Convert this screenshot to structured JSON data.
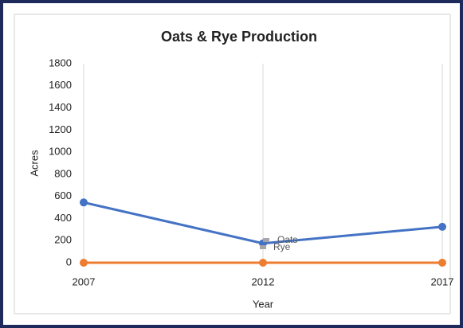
{
  "chart_data": {
    "type": "line",
    "title": "Oats & Rye Production",
    "xlabel": "Year",
    "ylabel": "Acres",
    "categories": [
      "2007",
      "2012",
      "2017"
    ],
    "series": [
      {
        "name": "Oats",
        "color": "#4472c4",
        "values": [
          545,
          175,
          325
        ]
      },
      {
        "name": "Rye",
        "color": "#ed7d31",
        "values": [
          0,
          0,
          0
        ]
      }
    ],
    "ylim": [
      0,
      1800
    ],
    "yticks": [
      0,
      200,
      400,
      600,
      800,
      1000,
      1200,
      1400,
      1600,
      1800
    ],
    "grid": "x",
    "legend": "center"
  }
}
